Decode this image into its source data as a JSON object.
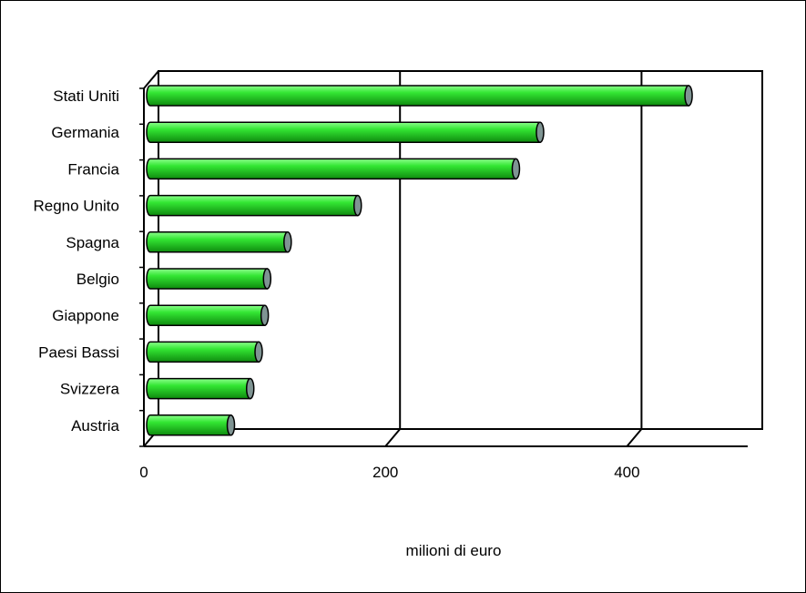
{
  "chart_data": {
    "type": "bar",
    "orientation": "horizontal",
    "style": "3d-cylinder",
    "categories": [
      "Stati Uniti",
      "Germania",
      "Francia",
      "Regno Unito",
      "Spagna",
      "Belgio",
      "Giappone",
      "Paesi Bassi",
      "Svizzera",
      "Austria"
    ],
    "series": [
      {
        "values": [
          445,
          322,
          302,
          171,
          113,
          96,
          94,
          89,
          82,
          66
        ]
      }
    ],
    "xlabel": "milioni di euro",
    "xlim": [
      0,
      500
    ],
    "xticks": [
      0,
      200,
      400
    ],
    "xtick_labels": [
      "0",
      "200",
      "400"
    ],
    "grid": "vertical",
    "legend": "none",
    "colors": {
      "bar_light": "#8cff8c",
      "bar_mid": "#33e633",
      "bar_dark": "#0e8a0e",
      "bar_cap": "#7f9493",
      "outline": "#000000"
    }
  }
}
